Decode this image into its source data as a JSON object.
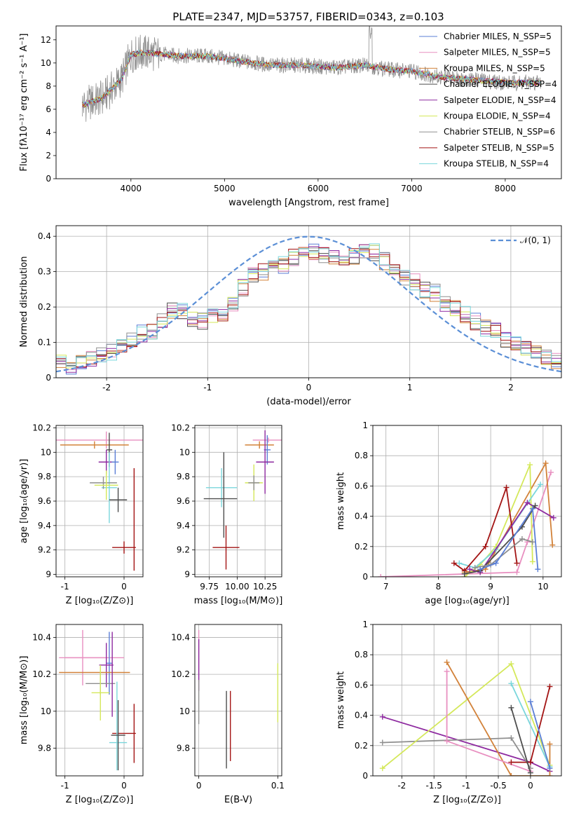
{
  "figure": {
    "title": "PLATE=2347, MJD=53757, FIBERID=0343, z=0.103"
  },
  "colors": {
    "chabrier_miles": "#5b7fd6",
    "salpeter_miles": "#e88fc0",
    "kroupa_miles": "#d2823a",
    "chabrier_elodie": "#4e4e4e",
    "salpeter_elodie": "#8e2aa0",
    "kroupa_elodie": "#d4e85a",
    "chabrier_stelib": "#8f8f8f",
    "salpeter_stelib": "#a31414",
    "kroupa_stelib": "#7ad6dc",
    "normal": "#5b8fd6",
    "grid": "#b0b0b0"
  },
  "chart_data": [
    {
      "id": "spectrum",
      "type": "line",
      "xlabel": "wavelength [Angstrom, rest frame]",
      "ylabel": "Flux [fλ10⁻¹⁷ erg cm⁻² s⁻¹ A⁻¹]",
      "xlim": [
        3200,
        8600
      ],
      "ylim": [
        0,
        13.2
      ],
      "xticks": [
        4000,
        5000,
        6000,
        7000,
        8000
      ],
      "yticks": [
        0,
        2,
        4,
        6,
        8,
        10,
        12
      ],
      "grid": false,
      "legend": "upper right",
      "legend_entries": [
        "Chabrier MILES, N_SSP=5",
        "Salpeter MILES, N_SSP=5",
        "Kroupa MILES, N_SSP=5",
        "Chabrier ELODIE, N_SSP=4",
        "Salpeter ELODIE, N_SSP=4",
        "Kroupa ELODIE, N_SSP=4",
        "Chabrier STELIB, N_SSP=6",
        "Salpeter STELIB, N_SSP=5",
        "Kroupa STELIB, N_SSP=4"
      ],
      "continuum": {
        "x": [
          3500,
          3700,
          3900,
          4000,
          4100,
          4300,
          4500,
          4800,
          5000,
          5200,
          5500,
          5800,
          6000,
          6200,
          6500,
          6800,
          7000,
          7300,
          7600,
          8000,
          8400
        ],
        "y": [
          6.4,
          7.0,
          8.6,
          10.7,
          10.9,
          10.8,
          10.6,
          10.6,
          10.4,
          10.1,
          9.8,
          9.8,
          9.7,
          9.6,
          9.8,
          9.4,
          9.3,
          8.8,
          8.6,
          8.3,
          8.3
        ]
      }
    },
    {
      "id": "residuals",
      "type": "step",
      "xlabel": "(data-model)/error",
      "ylabel": "Normed distribution",
      "xlim": [
        -2.5,
        2.5
      ],
      "ylim": [
        0,
        0.43
      ],
      "xticks": [
        -2,
        -1,
        0,
        1,
        2
      ],
      "yticks": [
        0.0,
        0.1,
        0.2,
        0.3,
        0.4
      ],
      "grid": true,
      "legend": "upper right",
      "legend_entries": [
        "𝒩(0, 1)"
      ],
      "bin_width": 0.1,
      "bin_start": -2.5,
      "histogram": [
        0.04,
        0.035,
        0.04,
        0.05,
        0.06,
        0.07,
        0.09,
        0.11,
        0.125,
        0.13,
        0.16,
        0.19,
        0.19,
        0.165,
        0.16,
        0.17,
        0.18,
        0.21,
        0.255,
        0.295,
        0.3,
        0.31,
        0.32,
        0.34,
        0.36,
        0.355,
        0.35,
        0.34,
        0.33,
        0.345,
        0.36,
        0.355,
        0.33,
        0.3,
        0.28,
        0.27,
        0.25,
        0.24,
        0.21,
        0.195,
        0.18,
        0.16,
        0.14,
        0.13,
        0.11,
        0.1,
        0.08,
        0.07,
        0.06,
        0.05
      ],
      "normal_curve": {
        "mu": 0,
        "sigma": 1
      }
    },
    {
      "id": "age_vs_Z",
      "type": "errorbar",
      "xlabel": "Z [log₁₀(Z/Z⊙)]",
      "ylabel": "age  [log₁₀(age/yr)]",
      "xlim": [
        -1.15,
        0.32
      ],
      "ylim": [
        8.98,
        10.22
      ],
      "xticks": [
        -1,
        0
      ],
      "yticks": [
        9.0,
        9.2,
        9.4,
        9.6,
        9.8,
        10.0,
        10.2
      ],
      "grid": true,
      "points": [
        {
          "series": "salpeter_miles",
          "x": -0.3,
          "y": 10.1,
          "xerr": 0.85,
          "yerr": 0.07
        },
        {
          "series": "kroupa_miles",
          "x": -0.5,
          "y": 10.06,
          "xerr": 0.58,
          "yerr": 0.03
        },
        {
          "series": "chabrier_elodie",
          "x": -0.25,
          "y": 10.02,
          "xerr": 0.05,
          "yerr": 0.14
        },
        {
          "series": "salpeter_elodie",
          "x": -0.3,
          "y": 9.92,
          "xerr": 0.13,
          "yerr": 0.1
        },
        {
          "series": "chabrier_miles",
          "x": -0.15,
          "y": 9.92,
          "xerr": 0.06,
          "yerr": 0.1
        },
        {
          "series": "kroupa_stelib",
          "x": -0.25,
          "y": 9.71,
          "xerr": 0.13,
          "yerr": 0.29
        },
        {
          "series": "chabrier_stelib",
          "x": -0.35,
          "y": 9.75,
          "xerr": 0.23,
          "yerr": 0.05
        },
        {
          "series": "kroupa_elodie",
          "x": -0.3,
          "y": 9.73,
          "xerr": 0.2,
          "yerr": 0.12
        },
        {
          "series": "chabrier_elodie",
          "x": -0.1,
          "y": 9.61,
          "xerr": 0.15,
          "yerr": 0.1
        },
        {
          "series": "salpeter_stelib",
          "x": 0.0,
          "y": 9.22,
          "xerr": 0.2,
          "yerr": 0.05
        },
        {
          "series": "salpeter_stelib",
          "x": 0.17,
          "y": 9.45,
          "xerr": 0.0,
          "yerr": 0.42
        }
      ]
    },
    {
      "id": "age_vs_mass",
      "type": "errorbar",
      "xlabel": "mass [log₁₀(M/M⊙)]",
      "ylabel": "",
      "xlim": [
        9.62,
        10.4
      ],
      "ylim": [
        8.98,
        10.22
      ],
      "xticks": [
        9.75,
        10.0,
        10.25
      ],
      "xticklabels": [
        "9.75",
        "10.00",
        "10.25"
      ],
      "yticks": [
        9.0,
        9.2,
        9.4,
        9.6,
        9.8,
        10.0,
        10.2
      ],
      "grid": true,
      "points": [
        {
          "series": "salpeter_miles",
          "x": 10.28,
          "y": 10.1,
          "xerr": 0.14,
          "yerr": 0.02
        },
        {
          "series": "kroupa_miles",
          "x": 10.2,
          "y": 10.06,
          "xerr": 0.13,
          "yerr": 0.03
        },
        {
          "series": "chabrier_miles",
          "x": 10.27,
          "y": 10.02,
          "xerr": 0.03,
          "yerr": 0.12
        },
        {
          "series": "salpeter_elodie",
          "x": 10.25,
          "y": 9.92,
          "xerr": 0.08,
          "yerr": 0.26
        },
        {
          "series": "kroupa_elodie",
          "x": 10.15,
          "y": 9.75,
          "xerr": 0.08,
          "yerr": 0.15
        },
        {
          "series": "chabrier_stelib",
          "x": 10.15,
          "y": 9.75,
          "xerr": 0.05,
          "yerr": 0.06
        },
        {
          "series": "kroupa_stelib",
          "x": 9.86,
          "y": 9.71,
          "xerr": 0.14,
          "yerr": 0.16
        },
        {
          "series": "chabrier_elodie",
          "x": 9.85,
          "y": 9.62,
          "xerr": 0.15,
          "yerr": 0.0
        },
        {
          "series": "chabrier_elodie",
          "x": 9.88,
          "y": 9.65,
          "xerr": 0.0,
          "yerr": 0.35
        },
        {
          "series": "salpeter_stelib",
          "x": 9.9,
          "y": 9.22,
          "xerr": 0.12,
          "yerr": 0.18
        }
      ]
    },
    {
      "id": "weight_vs_age",
      "type": "line",
      "xlabel": "age  [log₁₀(age/yr)]",
      "ylabel": "mass weight",
      "xlim": [
        6.75,
        10.35
      ],
      "ylim": [
        0,
        1.0
      ],
      "xticks": [
        7,
        8,
        9,
        10
      ],
      "yticks": [
        0.0,
        0.2,
        0.4,
        0.6,
        0.8,
        1.0
      ],
      "grid": true,
      "series": [
        {
          "series": "salpeter_miles",
          "x": [
            6.9,
            9.5,
            9.7,
            10.15
          ],
          "y": [
            0.0,
            0.03,
            0.23,
            0.69
          ]
        },
        {
          "series": "kroupa_miles",
          "x": [
            8.5,
            8.9,
            10.05,
            10.18
          ],
          "y": [
            0.03,
            0.05,
            0.75,
            0.21
          ]
        },
        {
          "series": "kroupa_elodie",
          "x": [
            8.5,
            8.8,
            9.1,
            9.75,
            9.8
          ],
          "y": [
            0.0,
            0.08,
            0.2,
            0.74,
            0.1
          ]
        },
        {
          "series": "kroupa_stelib",
          "x": [
            8.4,
            8.7,
            9.1,
            9.95
          ],
          "y": [
            0.09,
            0.06,
            0.18,
            0.61
          ]
        },
        {
          "series": "salpeter_stelib",
          "x": [
            8.3,
            8.5,
            8.9,
            9.3,
            9.5
          ],
          "y": [
            0.09,
            0.04,
            0.2,
            0.59,
            0.09
          ]
        },
        {
          "series": "salpeter_elodie",
          "x": [
            8.6,
            8.8,
            9.7,
            10.2
          ],
          "y": [
            0.05,
            0.03,
            0.49,
            0.39
          ]
        },
        {
          "series": "chabrier_elodie",
          "x": [
            8.5,
            8.8,
            9.6,
            9.85
          ],
          "y": [
            0.02,
            0.04,
            0.33,
            0.47
          ]
        },
        {
          "series": "chabrier_stelib",
          "x": [
            8.7,
            9.0,
            9.6,
            9.8
          ],
          "y": [
            0.06,
            0.08,
            0.25,
            0.23
          ]
        },
        {
          "series": "chabrier_miles",
          "x": [
            8.8,
            9.1,
            9.8,
            9.9
          ],
          "y": [
            0.05,
            0.09,
            0.45,
            0.05
          ]
        }
      ]
    },
    {
      "id": "mass_vs_Z",
      "type": "errorbar",
      "xlabel": "Z [log₁₀(Z/Z⊙)]",
      "ylabel": "mass [log₁₀(M/M⊙)]",
      "xlim": [
        -1.15,
        0.32
      ],
      "ylim": [
        9.65,
        10.47
      ],
      "xticks": [
        -1,
        0
      ],
      "yticks": [
        9.8,
        10.0,
        10.2,
        10.4
      ],
      "grid": true,
      "points": [
        {
          "series": "salpeter_miles",
          "x": -0.7,
          "y": 10.29,
          "xerr": 0.4,
          "yerr": 0.15
        },
        {
          "series": "salpeter_miles",
          "x": -0.5,
          "y": 10.29,
          "xerr": 0.5,
          "yerr": 0.0
        },
        {
          "series": "chabrier_miles",
          "x": -0.25,
          "y": 10.26,
          "xerr": 0.05,
          "yerr": 0.17
        },
        {
          "series": "salpeter_elodie",
          "x": -0.3,
          "y": 10.25,
          "xerr": 0.12,
          "yerr": 0.12
        },
        {
          "series": "kroupa_miles",
          "x": -0.5,
          "y": 10.21,
          "xerr": 0.6,
          "yerr": 0.0
        },
        {
          "series": "chabrier_stelib",
          "x": -0.4,
          "y": 10.15,
          "xerr": 0.25,
          "yerr": 0.06
        },
        {
          "series": "kroupa_elodie",
          "x": -0.4,
          "y": 10.1,
          "xerr": 0.15,
          "yerr": 0.15
        },
        {
          "series": "salpeter_elodie",
          "x": -0.2,
          "y": 10.2,
          "xerr": 0.0,
          "yerr": 0.23
        },
        {
          "series": "salpeter_stelib",
          "x": 0.0,
          "y": 9.88,
          "xerr": 0.2,
          "yerr": 0.0
        },
        {
          "series": "salpeter_stelib",
          "x": 0.17,
          "y": 9.88,
          "xerr": 0.0,
          "yerr": 0.16
        },
        {
          "series": "kroupa_stelib",
          "x": -0.1,
          "y": 9.83,
          "xerr": 0.15,
          "yerr": 0.0
        },
        {
          "series": "kroupa_stelib",
          "x": -0.12,
          "y": 9.92,
          "xerr": 0.0,
          "yerr": 0.24
        },
        {
          "series": "chabrier_elodie",
          "x": -0.1,
          "y": 9.87,
          "xerr": 0.12,
          "yerr": 0.19
        }
      ]
    },
    {
      "id": "mass_vs_ebv",
      "type": "errorbar",
      "xlabel": "E(B-V)",
      "ylabel": "",
      "xlim": [
        -0.005,
        0.105
      ],
      "ylim": [
        9.65,
        10.47
      ],
      "xticks": [
        0.0,
        0.1
      ],
      "yticks": [
        9.8,
        10.0,
        10.2,
        10.4
      ],
      "grid": true,
      "points": [
        {
          "series": "salpeter_miles",
          "x": 0.0,
          "y": 10.3,
          "xerr": 0.0,
          "yerr": 0.14
        },
        {
          "series": "salpeter_elodie",
          "x": 0.0,
          "y": 10.25,
          "xerr": 0.0,
          "yerr": 0.14
        },
        {
          "series": "chabrier_stelib",
          "x": 0.0,
          "y": 10.05,
          "xerr": 0.0,
          "yerr": 0.12
        },
        {
          "series": "chabrier_elodie",
          "x": 0.035,
          "y": 9.9,
          "xerr": 0.0,
          "yerr": 0.21
        },
        {
          "series": "salpeter_stelib",
          "x": 0.04,
          "y": 9.92,
          "xerr": 0.0,
          "yerr": 0.19
        },
        {
          "series": "kroupa_elodie",
          "x": 0.1,
          "y": 10.1,
          "xerr": 0.0,
          "yerr": 0.16
        }
      ]
    },
    {
      "id": "weight_vs_Z",
      "type": "line",
      "xlabel": "Z [log₁₀(Z/Z⊙)]",
      "ylabel": "mass weight",
      "xlim": [
        -2.45,
        0.48
      ],
      "ylim": [
        0,
        1.0
      ],
      "xticks": [
        -2.0,
        -1.5,
        -1.0,
        -0.5,
        0.0
      ],
      "yticks": [
        0.0,
        0.2,
        0.4,
        0.6,
        0.8,
        1.0
      ],
      "grid": true,
      "series": [
        {
          "series": "salpeter_elodie",
          "x": [
            -2.3,
            0.0,
            0.3
          ],
          "y": [
            0.39,
            0.09,
            0.03
          ]
        },
        {
          "series": "chabrier_stelib",
          "x": [
            -2.3,
            -0.3,
            0.0
          ],
          "y": [
            0.22,
            0.25,
            0.05
          ]
        },
        {
          "series": "kroupa_elodie",
          "x": [
            -2.3,
            -0.3,
            0.3
          ],
          "y": [
            0.05,
            0.74,
            0.07
          ]
        },
        {
          "series": "kroupa_miles",
          "x": [
            -1.3,
            -0.3,
            0.3,
            0.3
          ],
          "y": [
            0.75,
            0.0,
            0.0,
            0.21
          ]
        },
        {
          "series": "salpeter_miles",
          "x": [
            -1.3,
            -1.3,
            0.0
          ],
          "y": [
            0.69,
            0.23,
            0.03
          ]
        },
        {
          "series": "kroupa_stelib",
          "x": [
            -0.3,
            0.3
          ],
          "y": [
            0.61,
            0.06
          ]
        },
        {
          "series": "salpeter_stelib",
          "x": [
            -0.3,
            0.0,
            0.3
          ],
          "y": [
            0.09,
            0.09,
            0.59
          ]
        },
        {
          "series": "chabrier_elodie",
          "x": [
            -0.3,
            0.0
          ],
          "y": [
            0.45,
            0.02
          ]
        },
        {
          "series": "chabrier_miles",
          "x": [
            0.0,
            0.3
          ],
          "y": [
            0.49,
            0.05
          ]
        }
      ]
    }
  ]
}
